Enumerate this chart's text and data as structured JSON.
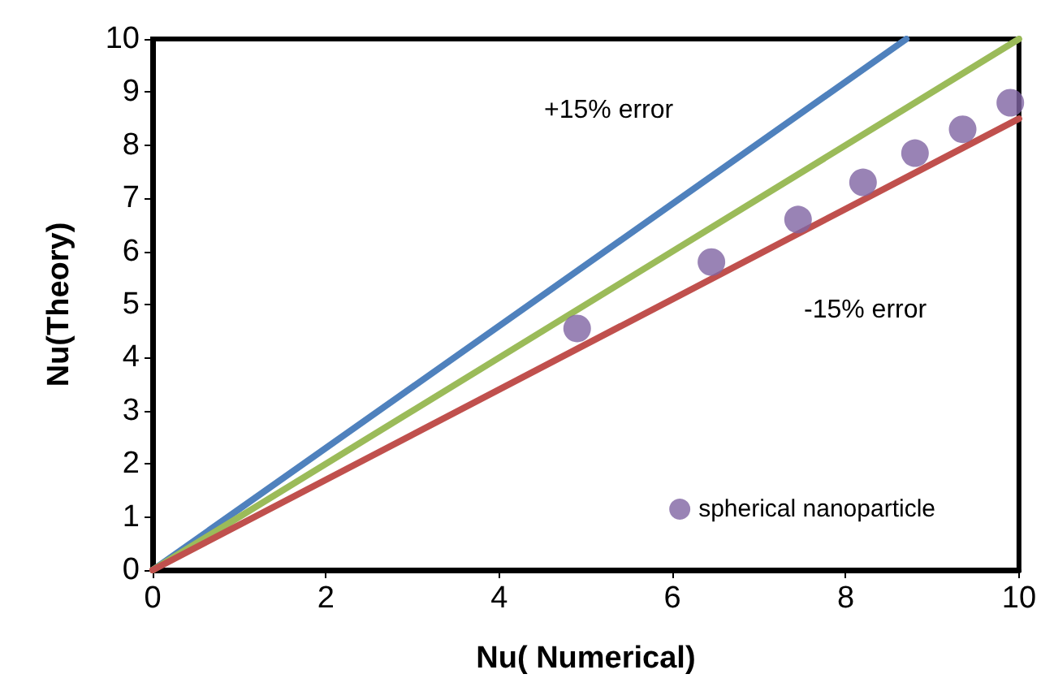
{
  "chart_data": {
    "type": "scatter",
    "xlabel": "Nu( Numerical)",
    "ylabel": "Nu(Theory)",
    "xlim": [
      0,
      10
    ],
    "xticks": [
      0,
      2,
      4,
      6,
      8,
      10
    ],
    "ylim": [
      0,
      10
    ],
    "yticks": [
      0,
      1,
      2,
      3,
      4,
      5,
      6,
      7,
      8,
      9,
      10
    ],
    "grid": false,
    "legend": "bottom right",
    "annotations": [
      "+15% error",
      "-15% error"
    ],
    "series": [
      {
        "name": "spherical nanoparticle",
        "marker": "circle",
        "color": "#8064a2",
        "x": [
          4.9,
          6.45,
          7.45,
          8.2,
          8.8,
          9.35,
          9.9
        ],
        "values": [
          4.55,
          5.8,
          6.6,
          7.3,
          7.85,
          8.3,
          8.8
        ]
      },
      {
        "type": "line",
        "marker": "none",
        "color": "#4f81bd",
        "x": [
          0,
          8.7
        ],
        "values": [
          0,
          10
        ]
      },
      {
        "type": "line",
        "marker": "none",
        "color": "#9bbb59",
        "x": [
          0,
          10
        ],
        "values": [
          0,
          10
        ]
      },
      {
        "type": "line",
        "marker": "none",
        "color": "#c0504d",
        "x": [
          0,
          10
        ],
        "values": [
          0,
          8.5
        ]
      }
    ]
  }
}
